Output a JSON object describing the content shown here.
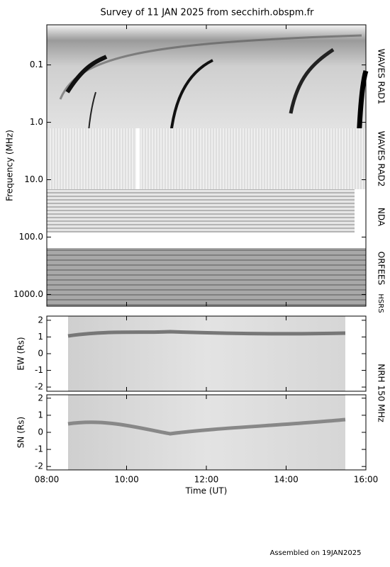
{
  "title": "Survey of 11 JAN 2025 from secchirh.obspm.fr",
  "footer": "Assembled on 19JAN2025",
  "instrument_label": "NRH 150 MHz",
  "chart_data": [
    {
      "type": "spectrogram",
      "y_label": "Frequency (MHz)",
      "yscale": "log",
      "y_inverted": true,
      "ylim": [
        0.02,
        1600
      ],
      "yticks": [
        {
          "value": 0.1,
          "label": "0.1"
        },
        {
          "value": 1,
          "label": "1.0"
        },
        {
          "value": 10,
          "label": "10.0"
        },
        {
          "value": 100,
          "label": "100.0"
        },
        {
          "value": 1000,
          "label": "1000.0"
        }
      ],
      "instruments": [
        "WAVES RAD1",
        "WAVES RAD2",
        "NDA",
        "ORFEES",
        "HSRS"
      ]
    },
    {
      "type": "heatmap",
      "y_label": "EW (Rs)",
      "ylim": [
        -2.25,
        2.25
      ],
      "yticks": [
        -2,
        -1,
        0,
        1,
        2
      ]
    },
    {
      "type": "heatmap",
      "y_label": "SN (Rs)",
      "ylim": [
        -2.2,
        2.2
      ],
      "yticks": [
        -2,
        -1,
        0,
        1,
        2
      ],
      "x_label": "Time (UT)",
      "xlim": [
        8,
        16
      ],
      "xticks": [
        {
          "value": 8,
          "label": "08:00"
        },
        {
          "value": 10,
          "label": "10:00"
        },
        {
          "value": 12,
          "label": "12:00"
        },
        {
          "value": 14,
          "label": "14:00"
        },
        {
          "value": 16,
          "label": "16:00"
        }
      ]
    }
  ]
}
